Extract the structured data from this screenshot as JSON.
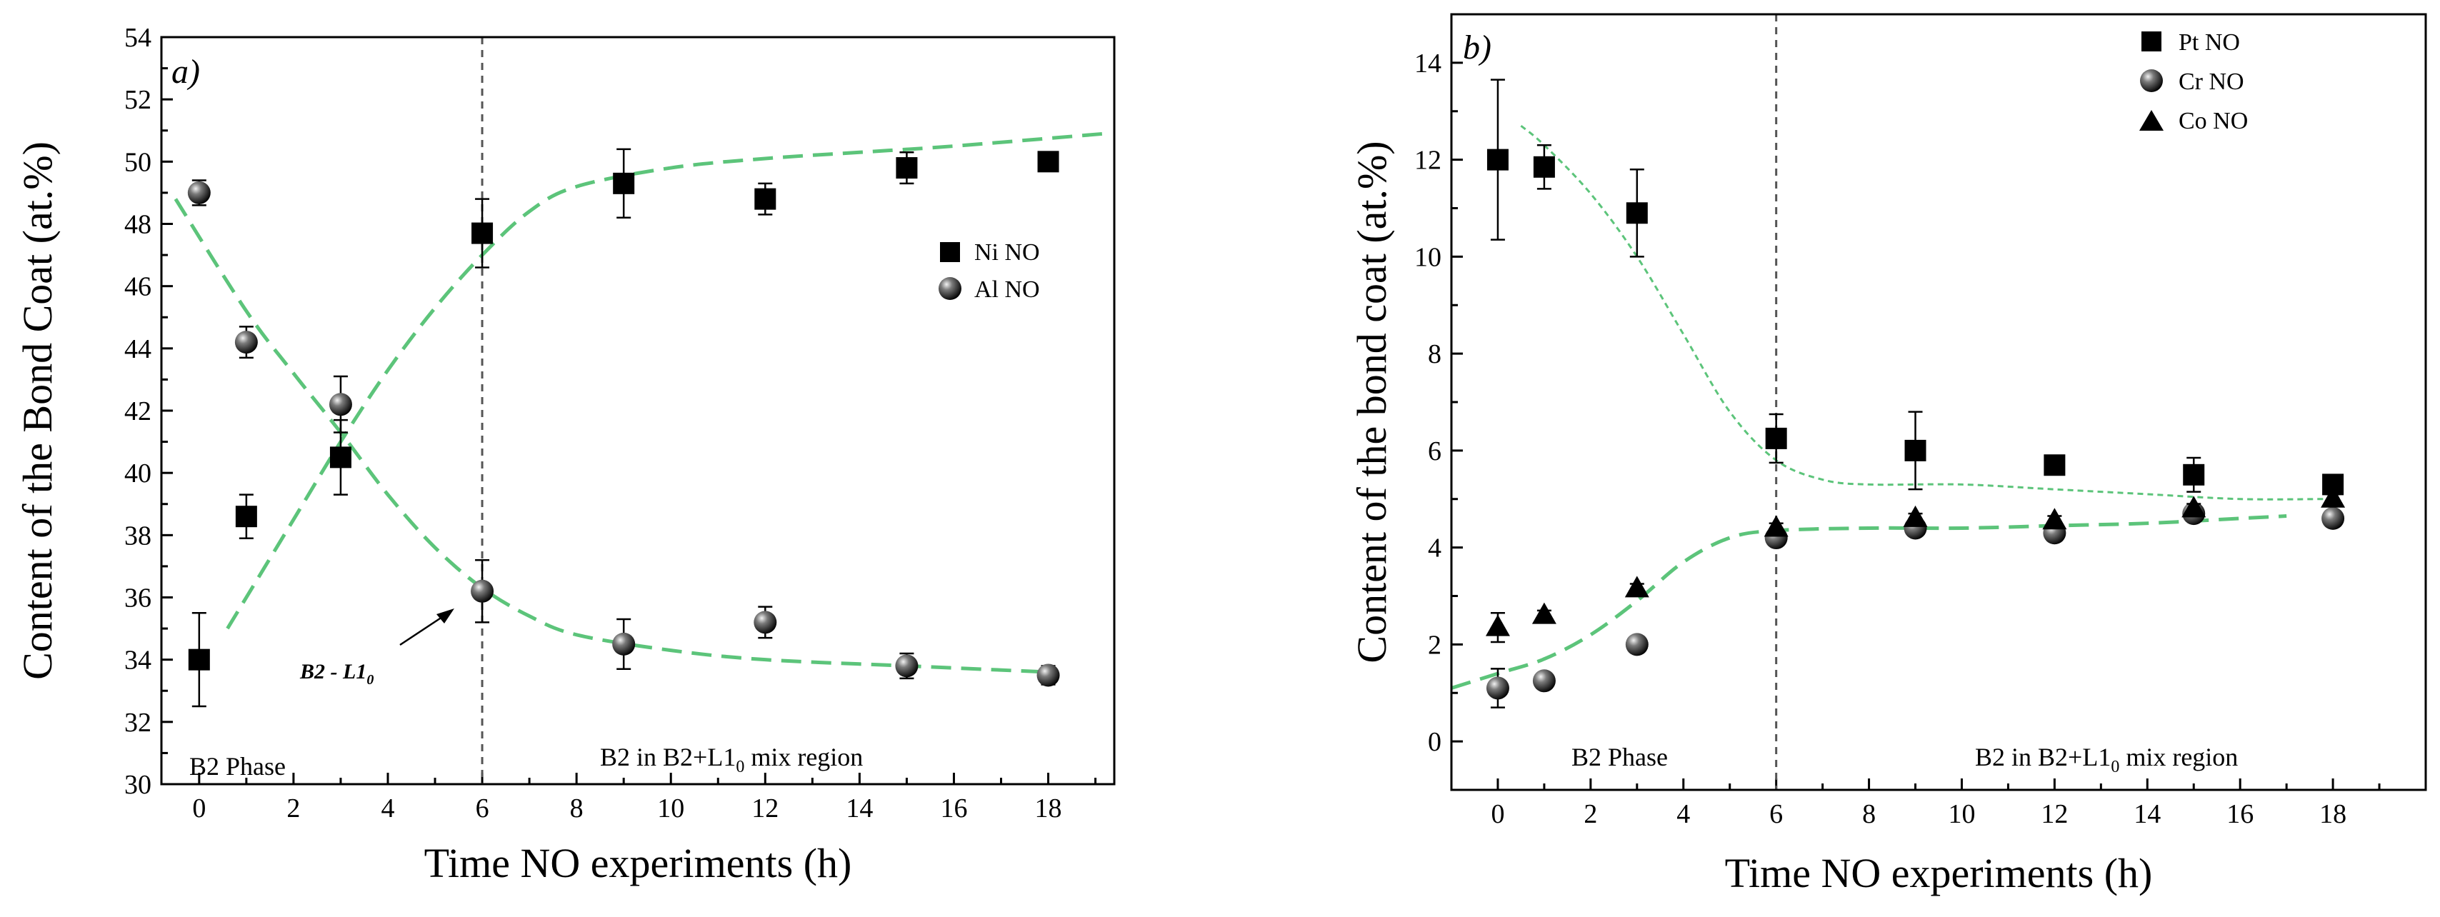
{
  "chart_data": [
    {
      "type": "scatter",
      "panel_label": "a)",
      "xlabel": "Time NO experiments (h)",
      "ylabel": "Content of the Bond Coat (at.%)",
      "xlim": [
        -0.8,
        19.4
      ],
      "ylim": [
        30,
        54
      ],
      "xticks": [
        0,
        2,
        4,
        6,
        8,
        10,
        12,
        14,
        16,
        18
      ],
      "yticks": [
        30,
        32,
        34,
        36,
        38,
        40,
        42,
        44,
        46,
        48,
        50,
        52,
        54
      ],
      "legend_position": "middle-right",
      "series": [
        {
          "name": "Ni NO",
          "marker": "square",
          "x": [
            0,
            1,
            3,
            6,
            9,
            12,
            15,
            18
          ],
          "y": [
            34.0,
            38.6,
            40.5,
            47.7,
            49.3,
            48.8,
            49.8,
            50.0
          ],
          "yerr": [
            1.5,
            0.7,
            1.2,
            1.1,
            1.1,
            0.5,
            0.5,
            0.3
          ]
        },
        {
          "name": "Al NO",
          "marker": "sphere",
          "x": [
            0,
            1,
            3,
            6,
            9,
            12,
            15,
            18
          ],
          "y": [
            49.0,
            44.2,
            42.2,
            36.2,
            34.5,
            35.2,
            33.8,
            33.5
          ],
          "yerr": [
            0.4,
            0.5,
            0.9,
            1.0,
            0.8,
            0.5,
            0.4,
            0.3
          ]
        }
      ],
      "trend_lines": [
        {
          "name": "Ni trend",
          "x": [
            0.6,
            2,
            3,
            4,
            5,
            6,
            7,
            8,
            10,
            12,
            14,
            16,
            19.2
          ],
          "y": [
            35.0,
            38.5,
            41.0,
            43.3,
            45.3,
            47.0,
            48.4,
            49.2,
            49.8,
            50.1,
            50.3,
            50.5,
            50.9
          ]
        },
        {
          "name": "Al trend",
          "x": [
            -0.5,
            1,
            2,
            3,
            4,
            5,
            6,
            7,
            8,
            10,
            12,
            15,
            18
          ],
          "y": [
            48.8,
            45.2,
            43.2,
            41.3,
            39.3,
            37.6,
            36.3,
            35.4,
            34.8,
            34.3,
            34.0,
            33.8,
            33.6
          ]
        }
      ],
      "reference_line": {
        "x": 6
      },
      "annotation": {
        "main": "B2 - L1",
        "subscript": "0",
        "points_to": {
          "x": 6,
          "y": 36.2
        }
      },
      "regions": [
        {
          "label": "B2 Phase"
        },
        {
          "label_main": "B2 in B2+L1",
          "label_sub": "0",
          "label_tail": " mix region"
        }
      ]
    },
    {
      "type": "scatter",
      "panel_label": "b)",
      "xlabel": "Time NO experiments (h)",
      "ylabel": "Content of the bond coat (at.%)",
      "xlim": [
        -1.0,
        20.0
      ],
      "ylim": [
        -1,
        15
      ],
      "xticks": [
        0,
        2,
        4,
        6,
        8,
        10,
        12,
        14,
        16,
        18
      ],
      "yticks": [
        0,
        2,
        4,
        6,
        8,
        10,
        12,
        14
      ],
      "legend_position": "top-right",
      "series": [
        {
          "name": "Pt NO",
          "marker": "square",
          "x": [
            0,
            1,
            3,
            6,
            9,
            12,
            15,
            18
          ],
          "y": [
            12.0,
            11.85,
            10.9,
            6.25,
            6.0,
            5.7,
            5.5,
            5.3
          ],
          "yerr": [
            1.65,
            0.45,
            0.9,
            0.5,
            0.8,
            0.15,
            0.35,
            0.2
          ]
        },
        {
          "name": "Cr NO",
          "marker": "sphere",
          "x": [
            0,
            1,
            3,
            6,
            9,
            12,
            15,
            18
          ],
          "y": [
            1.1,
            1.25,
            2.0,
            4.2,
            4.4,
            4.3,
            4.7,
            4.6
          ],
          "yerr": [
            0.4,
            0.1,
            0.1,
            0.15,
            0.1,
            0.1,
            0.1,
            0.1
          ]
        },
        {
          "name": "Co NO",
          "marker": "triangle",
          "x": [
            0,
            1,
            3,
            6,
            9,
            12,
            15,
            18
          ],
          "y": [
            2.35,
            2.6,
            3.15,
            4.4,
            4.6,
            4.55,
            4.8,
            5.0
          ],
          "yerr": [
            0.3,
            0.1,
            0.1,
            0.1,
            0.1,
            0.1,
            0.1,
            0.1
          ]
        }
      ],
      "trend_lines": [
        {
          "name": "Pt trend",
          "x": [
            0.5,
            1,
            2,
            3,
            4,
            5,
            6,
            7,
            8,
            10,
            12,
            14,
            16,
            17.8
          ],
          "y": [
            12.7,
            12.3,
            11.3,
            10.0,
            8.4,
            6.8,
            5.8,
            5.4,
            5.3,
            5.3,
            5.2,
            5.1,
            5.0,
            5.0
          ]
        },
        {
          "name": "Cr-Co trend",
          "x": [
            -1,
            0,
            1,
            2,
            3,
            4,
            5,
            6,
            8,
            10,
            12,
            14,
            16,
            17
          ],
          "y": [
            1.1,
            1.4,
            1.7,
            2.2,
            2.9,
            3.7,
            4.2,
            4.35,
            4.4,
            4.4,
            4.45,
            4.5,
            4.6,
            4.65
          ]
        }
      ],
      "reference_line": {
        "x": 6
      },
      "regions": [
        {
          "label": "B2 Phase"
        },
        {
          "label_main": "B2 in B2+L1",
          "label_sub": "0",
          "label_tail": " mix region"
        }
      ]
    }
  ]
}
